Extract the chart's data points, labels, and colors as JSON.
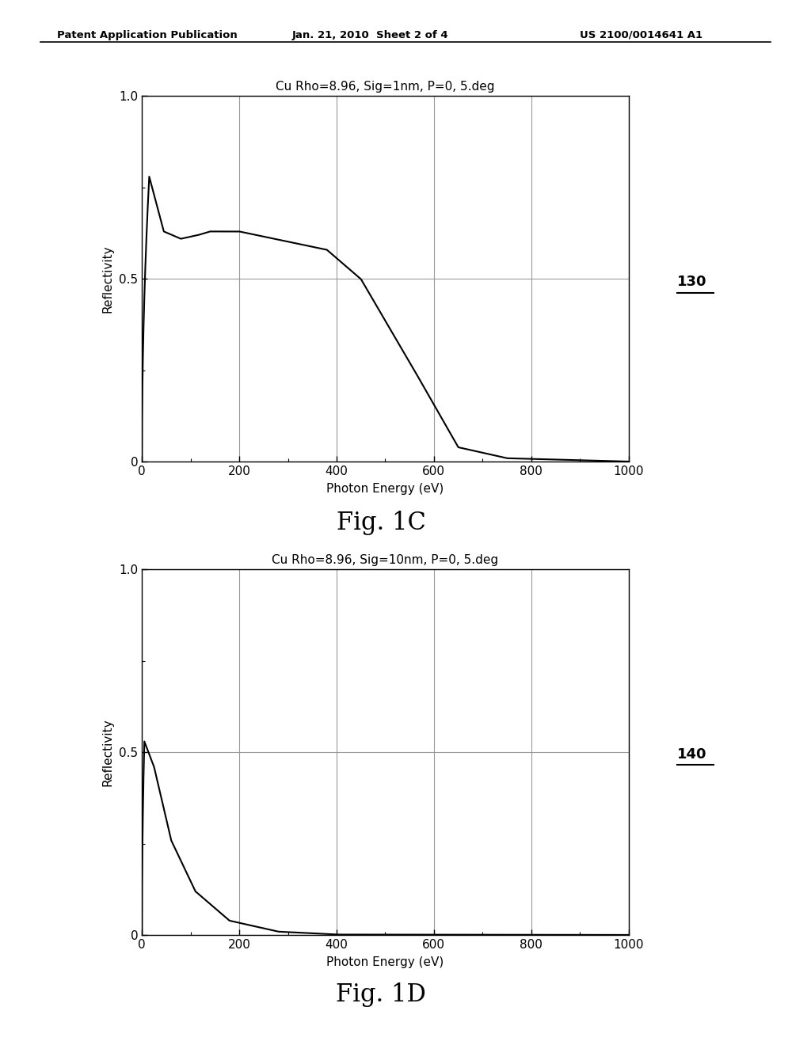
{
  "header_left": "Patent Application Publication",
  "header_center": "Jan. 21, 2010  Sheet 2 of 4",
  "header_right": "US 2100/0014641 A1",
  "fig1c_title": "Cu Rho=8.96, Sig=1nm, P=0, 5.deg",
  "fig1c_xlabel": "Photon Energy (eV)",
  "fig1c_ylabel": "Reflectivity",
  "fig1c_label": "130",
  "fig1c_caption": "Fig. 1C",
  "fig1d_title": "Cu Rho=8.96, Sig=10nm, P=0, 5.deg",
  "fig1d_xlabel": "Photon Energy (eV)",
  "fig1d_ylabel": "Reflectivity",
  "fig1d_label": "140",
  "fig1d_caption": "Fig. 1D",
  "xlim": [
    0,
    1000
  ],
  "ylim": [
    0,
    1.0
  ],
  "xticks": [
    0,
    200,
    400,
    600,
    800,
    1000
  ],
  "yticks": [
    0,
    0.5,
    1.0
  ],
  "ytick_labels": [
    "0",
    "0.5",
    "1.0"
  ],
  "line_color": "#000000",
  "bg_color": "#ffffff",
  "grid_color": "#999999"
}
